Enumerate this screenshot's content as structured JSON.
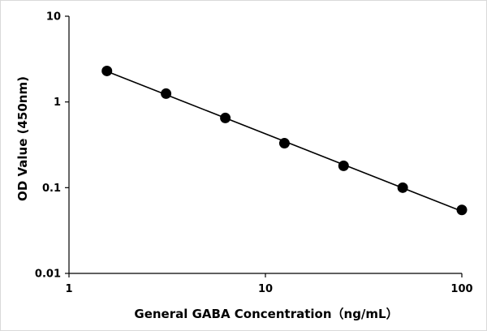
{
  "chart_data": {
    "type": "scatter",
    "xlabel": "General GABA Concentration（ng/mL）",
    "ylabel": "OD Value (450nm)",
    "xscale": "log",
    "yscale": "log",
    "xlim": [
      1,
      100
    ],
    "ylim": [
      0.01,
      10
    ],
    "xticks": [
      1,
      10,
      100
    ],
    "xtick_labels": [
      "1",
      "10",
      "100"
    ],
    "yticks": [
      0.01,
      0.1,
      1,
      10
    ],
    "ytick_labels": [
      "0.01",
      "0.1",
      "1",
      "10"
    ],
    "grid": false,
    "legend": "none",
    "trendline": "power",
    "series": [
      {
        "x": [
          1.56,
          3.12,
          6.25,
          12.5,
          25,
          50,
          100
        ],
        "y": [
          2.3,
          1.25,
          0.65,
          0.33,
          0.18,
          0.1,
          0.055
        ],
        "color": "#000000"
      }
    ]
  }
}
